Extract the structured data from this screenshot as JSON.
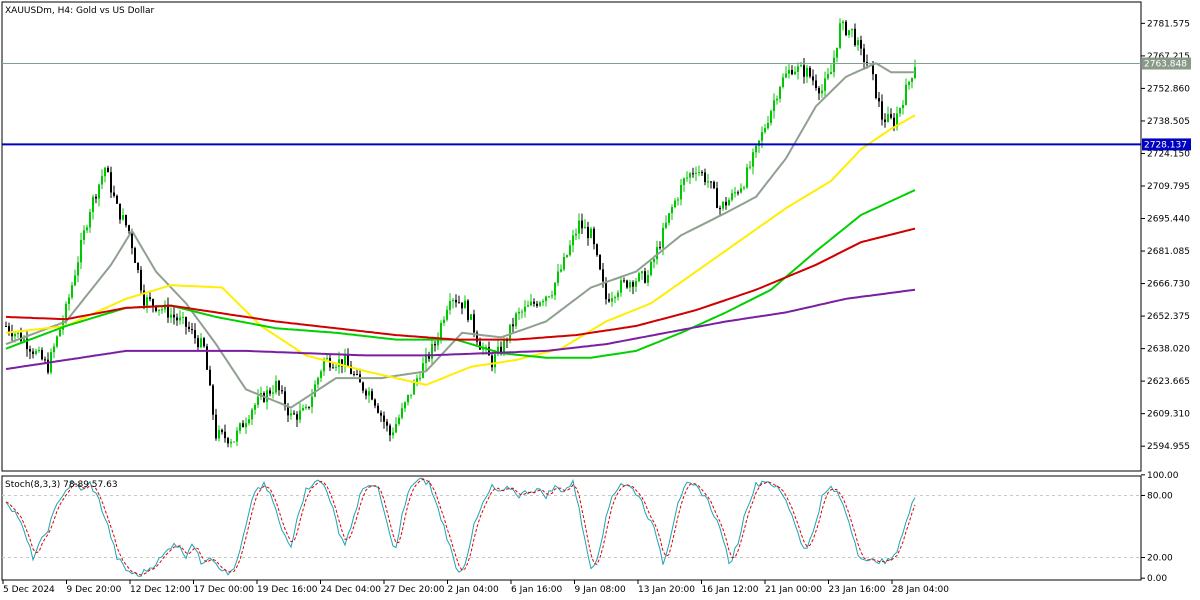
{
  "chart_title": "XAUUSDm, H4:  Gold vs US Dollar",
  "colors": {
    "bull_candle": "#00c800",
    "bear_candle": "#000000",
    "ma_fast": "#90a090",
    "ma_yellow": "#ffee00",
    "ma_green": "#00d000",
    "ma_red": "#d00000",
    "ma_purple": "#7a1fa2",
    "support_line": "#0000c0",
    "price_line": "#80a090",
    "stoch_main": "#1fa3b5",
    "stoch_signal": "#e00000",
    "grid": "#c8c8c8"
  },
  "chart_data": [
    {
      "type": "candlestick",
      "title": "XAUUSDm, H4:  Gold vs US Dollar",
      "ylim": [
        2584,
        2791
      ],
      "price_ticks": [
        "2781.575",
        "2767.215",
        "2752.860",
        "2738.505",
        "2724.150",
        "2709.795",
        "2695.440",
        "2681.085",
        "2666.730",
        "2652.375",
        "2638.020",
        "2623.665",
        "2609.310",
        "2594.955"
      ],
      "current_price_label": "2763.848",
      "current_price": 2763.848,
      "horizontal_line_label": "2728.137",
      "horizontal_line_price": 2728.137,
      "time_labels": [
        "5 Dec 2024",
        "9 Dec 20:00",
        "12 Dec 12:00",
        "17 Dec 00:00",
        "19 Dec 16:00",
        "24 Dec 04:00",
        "27 Dec 20:00",
        "2 Jan 04:00",
        "6 Jan 16:00",
        "9 Jan 08:00",
        "13 Jan 20:00",
        "16 Jan 12:00",
        "21 Jan 00:00",
        "23 Jan 16:00",
        "28 Jan 04:00"
      ],
      "price_path_waypoints": [
        [
          0,
          2648
        ],
        [
          6,
          2642
        ],
        [
          14,
          2630
        ],
        [
          20,
          2655
        ],
        [
          28,
          2700
        ],
        [
          33,
          2718
        ],
        [
          37,
          2700
        ],
        [
          41,
          2690
        ],
        [
          46,
          2660
        ],
        [
          53,
          2655
        ],
        [
          60,
          2648
        ],
        [
          66,
          2638
        ],
        [
          70,
          2600
        ],
        [
          76,
          2598
        ],
        [
          82,
          2612
        ],
        [
          90,
          2622
        ],
        [
          95,
          2608
        ],
        [
          100,
          2610
        ],
        [
          106,
          2633
        ],
        [
          113,
          2632
        ],
        [
          118,
          2622
        ],
        [
          122,
          2618
        ],
        [
          128,
          2600
        ],
        [
          132,
          2610
        ],
        [
          138,
          2628
        ],
        [
          143,
          2640
        ],
        [
          148,
          2662
        ],
        [
          153,
          2657
        ],
        [
          158,
          2640
        ],
        [
          162,
          2632
        ],
        [
          166,
          2640
        ],
        [
          170,
          2652
        ],
        [
          176,
          2658
        ],
        [
          182,
          2664
        ],
        [
          186,
          2676
        ],
        [
          191,
          2693
        ],
        [
          195,
          2688
        ],
        [
          200,
          2660
        ],
        [
          204,
          2665
        ],
        [
          208,
          2668
        ],
        [
          214,
          2670
        ],
        [
          218,
          2685
        ],
        [
          222,
          2700
        ],
        [
          226,
          2712
        ],
        [
          230,
          2718
        ],
        [
          234,
          2712
        ],
        [
          238,
          2700
        ],
        [
          242,
          2705
        ],
        [
          246,
          2712
        ],
        [
          250,
          2725
        ],
        [
          254,
          2740
        ],
        [
          258,
          2755
        ],
        [
          262,
          2762
        ],
        [
          267,
          2760
        ],
        [
          272,
          2752
        ],
        [
          275,
          2760
        ],
        [
          278,
          2780
        ],
        [
          282,
          2778
        ],
        [
          285,
          2768
        ],
        [
          288,
          2762
        ],
        [
          292,
          2740
        ],
        [
          296,
          2738
        ],
        [
          300,
          2752
        ],
        [
          303,
          2763.8
        ]
      ],
      "moving_averages": [
        {
          "color_key": "ma_fast",
          "waypoints": [
            [
              0,
              2640
            ],
            [
              20,
              2650
            ],
            [
              35,
              2675
            ],
            [
              42,
              2690
            ],
            [
              50,
              2672
            ],
            [
              60,
              2658
            ],
            [
              70,
              2640
            ],
            [
              80,
              2620
            ],
            [
              95,
              2612
            ],
            [
              110,
              2625
            ],
            [
              125,
              2625
            ],
            [
              140,
              2628
            ],
            [
              152,
              2645
            ],
            [
              165,
              2643
            ],
            [
              180,
              2650
            ],
            [
              195,
              2665
            ],
            [
              210,
              2672
            ],
            [
              225,
              2688
            ],
            [
              240,
              2698
            ],
            [
              250,
              2705
            ],
            [
              260,
              2722
            ],
            [
              270,
              2745
            ],
            [
              280,
              2758
            ],
            [
              290,
              2764
            ],
            [
              295,
              2760
            ],
            [
              303,
              2760
            ]
          ]
        },
        {
          "color_key": "ma_yellow",
          "waypoints": [
            [
              0,
              2645
            ],
            [
              20,
              2648
            ],
            [
              40,
              2660
            ],
            [
              55,
              2666
            ],
            [
              72,
              2665
            ],
            [
              85,
              2648
            ],
            [
              100,
              2635
            ],
            [
              120,
              2628
            ],
            [
              140,
              2622
            ],
            [
              155,
              2630
            ],
            [
              170,
              2633
            ],
            [
              185,
              2638
            ],
            [
              200,
              2650
            ],
            [
              215,
              2658
            ],
            [
              230,
              2672
            ],
            [
              245,
              2686
            ],
            [
              260,
              2700
            ],
            [
              275,
              2712
            ],
            [
              285,
              2726
            ],
            [
              295,
              2735
            ],
            [
              303,
              2741
            ]
          ]
        },
        {
          "color_key": "ma_green",
          "waypoints": [
            [
              0,
              2638
            ],
            [
              20,
              2648
            ],
            [
              40,
              2656
            ],
            [
              55,
              2657
            ],
            [
              70,
              2652
            ],
            [
              90,
              2647
            ],
            [
              110,
              2645
            ],
            [
              130,
              2642
            ],
            [
              150,
              2642
            ],
            [
              165,
              2636
            ],
            [
              180,
              2634
            ],
            [
              195,
              2634
            ],
            [
              210,
              2637
            ],
            [
              225,
              2645
            ],
            [
              240,
              2654
            ],
            [
              255,
              2664
            ],
            [
              270,
              2681
            ],
            [
              285,
              2697
            ],
            [
              303,
              2708
            ]
          ]
        },
        {
          "color_key": "ma_red",
          "waypoints": [
            [
              0,
              2652
            ],
            [
              20,
              2651
            ],
            [
              40,
              2656
            ],
            [
              55,
              2657
            ],
            [
              70,
              2654
            ],
            [
              90,
              2650
            ],
            [
              110,
              2647
            ],
            [
              130,
              2644
            ],
            [
              150,
              2642
            ],
            [
              170,
              2642
            ],
            [
              190,
              2644
            ],
            [
              210,
              2648
            ],
            [
              230,
              2655
            ],
            [
              250,
              2664
            ],
            [
              270,
              2675
            ],
            [
              285,
              2685
            ],
            [
              303,
              2691
            ]
          ]
        },
        {
          "color_key": "ma_purple",
          "waypoints": [
            [
              0,
              2629
            ],
            [
              20,
              2633
            ],
            [
              40,
              2637
            ],
            [
              60,
              2637
            ],
            [
              80,
              2637
            ],
            [
              100,
              2636
            ],
            [
              120,
              2635
            ],
            [
              140,
              2635
            ],
            [
              160,
              2636
            ],
            [
              180,
              2637
            ],
            [
              200,
              2640
            ],
            [
              220,
              2645
            ],
            [
              240,
              2650
            ],
            [
              260,
              2654
            ],
            [
              280,
              2660
            ],
            [
              303,
              2664
            ]
          ]
        }
      ]
    },
    {
      "type": "line",
      "title": "Stoch(8,3,3) 78.89 57.63",
      "ylim": [
        0,
        100
      ],
      "levels": [
        "100.00",
        "80.00",
        "20.00",
        "0.00"
      ],
      "dashed_levels": [
        80,
        20
      ],
      "stoch_waypoints": [
        [
          0,
          75
        ],
        [
          4,
          60
        ],
        [
          9,
          20
        ],
        [
          14,
          48
        ],
        [
          18,
          78
        ],
        [
          22,
          92
        ],
        [
          26,
          85
        ],
        [
          28,
          92
        ],
        [
          31,
          75
        ],
        [
          34,
          50
        ],
        [
          37,
          20
        ],
        [
          40,
          8
        ],
        [
          44,
          2
        ],
        [
          48,
          10
        ],
        [
          52,
          20
        ],
        [
          56,
          35
        ],
        [
          60,
          22
        ],
        [
          62,
          35
        ],
        [
          65,
          15
        ],
        [
          68,
          22
        ],
        [
          71,
          12
        ],
        [
          74,
          3
        ],
        [
          77,
          15
        ],
        [
          80,
          50
        ],
        [
          83,
          85
        ],
        [
          86,
          90
        ],
        [
          89,
          75
        ],
        [
          92,
          45
        ],
        [
          95,
          30
        ],
        [
          97,
          60
        ],
        [
          100,
          85
        ],
        [
          103,
          95
        ],
        [
          106,
          90
        ],
        [
          109,
          70
        ],
        [
          111,
          40
        ],
        [
          113,
          35
        ],
        [
          115,
          50
        ],
        [
          118,
          80
        ],
        [
          121,
          92
        ],
        [
          124,
          85
        ],
        [
          126,
          65
        ],
        [
          128,
          40
        ],
        [
          130,
          28
        ],
        [
          132,
          60
        ],
        [
          135,
          90
        ],
        [
          138,
          95
        ],
        [
          141,
          92
        ],
        [
          143,
          75
        ],
        [
          146,
          50
        ],
        [
          149,
          20
        ],
        [
          151,
          5
        ],
        [
          153,
          15
        ],
        [
          156,
          50
        ],
        [
          159,
          72
        ],
        [
          162,
          88
        ],
        [
          165,
          82
        ],
        [
          168,
          88
        ],
        [
          171,
          80
        ],
        [
          174,
          84
        ],
        [
          177,
          86
        ],
        [
          180,
          80
        ],
        [
          183,
          88
        ],
        [
          186,
          85
        ],
        [
          189,
          92
        ],
        [
          191,
          70
        ],
        [
          193,
          35
        ],
        [
          195,
          10
        ],
        [
          197,
          20
        ],
        [
          199,
          45
        ],
        [
          202,
          80
        ],
        [
          205,
          92
        ],
        [
          208,
          88
        ],
        [
          211,
          80
        ],
        [
          214,
          60
        ],
        [
          217,
          40
        ],
        [
          219,
          15
        ],
        [
          221,
          35
        ],
        [
          224,
          75
        ],
        [
          227,
          90
        ],
        [
          230,
          88
        ],
        [
          233,
          80
        ],
        [
          236,
          62
        ],
        [
          239,
          40
        ],
        [
          241,
          12
        ],
        [
          244,
          35
        ],
        [
          247,
          70
        ],
        [
          250,
          90
        ],
        [
          253,
          95
        ],
        [
          256,
          90
        ],
        [
          259,
          80
        ],
        [
          262,
          62
        ],
        [
          265,
          35
        ],
        [
          267,
          28
        ],
        [
          269,
          45
        ],
        [
          272,
          78
        ],
        [
          275,
          88
        ],
        [
          278,
          78
        ],
        [
          281,
          55
        ],
        [
          284,
          25
        ],
        [
          287,
          15
        ],
        [
          290,
          18
        ],
        [
          293,
          15
        ],
        [
          296,
          20
        ],
        [
          299,
          45
        ],
        [
          303,
          79
        ]
      ]
    }
  ]
}
